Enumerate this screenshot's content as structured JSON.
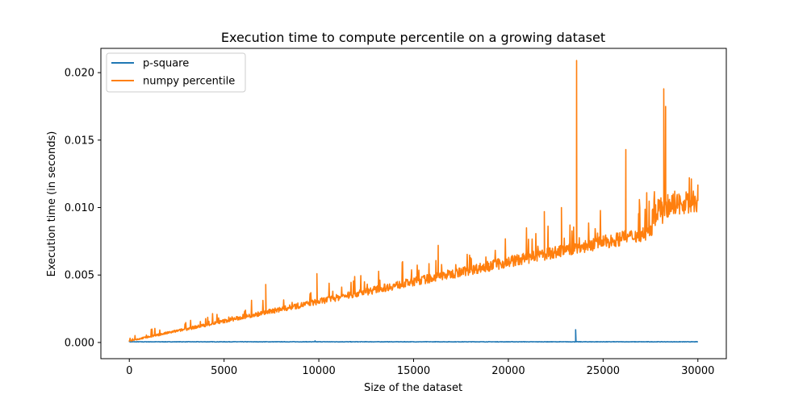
{
  "chart_data": {
    "type": "line",
    "title": "Execution time to compute percentile on a growing dataset",
    "xlabel": "Size of the dataset",
    "ylabel": "Execution time (in seconds)",
    "xlim": [
      -1500,
      31500
    ],
    "ylim": [
      -0.0012,
      0.0218
    ],
    "xticks": [
      0,
      5000,
      10000,
      15000,
      20000,
      25000,
      30000
    ],
    "xtick_labels": [
      "0",
      "5000",
      "10000",
      "15000",
      "20000",
      "25000",
      "30000"
    ],
    "yticks": [
      0.0,
      0.005,
      0.01,
      0.015,
      0.02
    ],
    "ytick_labels": [
      "0.000",
      "0.005",
      "0.010",
      "0.015",
      "0.020"
    ],
    "grid": false,
    "legend_position": "upper-left",
    "series": [
      {
        "name": "p-square",
        "color": "#1f77b4",
        "x": [
          0,
          5000,
          9800,
          15000,
          20000,
          23500,
          23550,
          23600,
          25000,
          30000
        ],
        "y": [
          5e-05,
          5e-05,
          0.00012,
          5e-05,
          5e-05,
          5e-05,
          0.00095,
          5e-05,
          5e-05,
          5e-05
        ]
      },
      {
        "name": "numpy percentile",
        "color": "#ff7f0e",
        "x": [
          0,
          2500,
          5000,
          7200,
          7500,
          9900,
          10000,
          12500,
          15000,
          16300,
          17500,
          20000,
          21900,
          22800,
          23600,
          25000,
          26200,
          27500,
          28200,
          28300,
          28500,
          29000,
          30000
        ],
        "y": [
          0.0001,
          0.0009,
          0.0016,
          0.0043,
          0.0024,
          0.0051,
          0.0029,
          0.0037,
          0.0044,
          0.0072,
          0.005,
          0.0058,
          0.0097,
          0.01,
          0.0209,
          0.0072,
          0.0143,
          0.008,
          0.0188,
          0.0175,
          0.0095,
          0.011,
          0.0105
        ]
      }
    ]
  }
}
